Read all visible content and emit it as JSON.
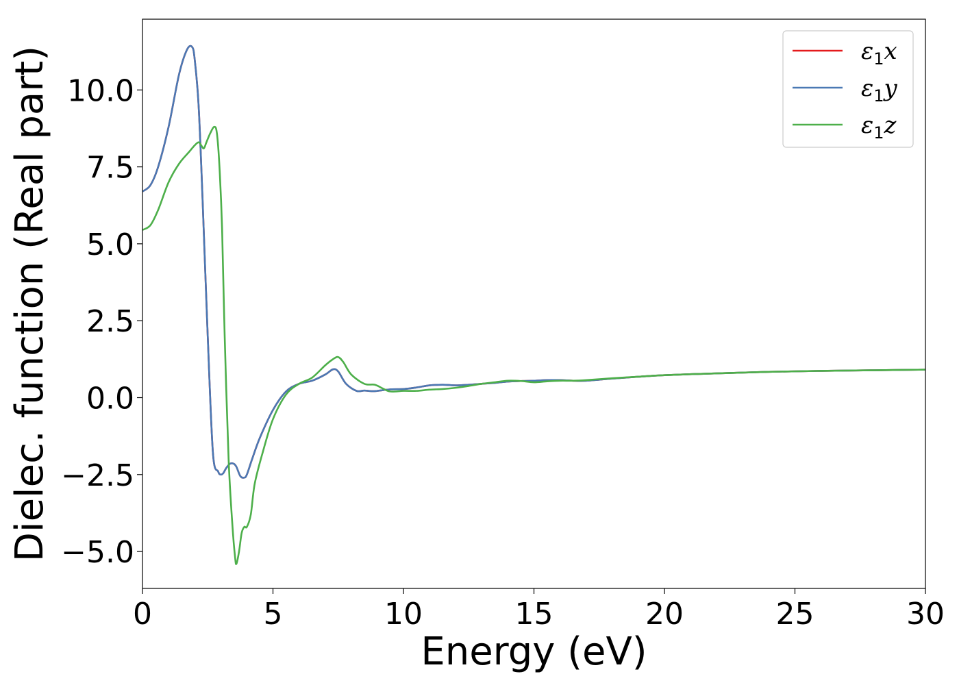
{
  "chart_data": {
    "type": "line",
    "title": "",
    "xlabel": "Energy (eV)",
    "ylabel": "Dielec. function (Real part)",
    "xlim": [
      0,
      30
    ],
    "ylim": [
      -6.2,
      12.3
    ],
    "xticks": [
      0,
      5,
      10,
      15,
      20,
      25,
      30
    ],
    "xtick_labels": [
      "0",
      "5",
      "10",
      "15",
      "20",
      "25",
      "30"
    ],
    "yticks": [
      -5.0,
      -2.5,
      0.0,
      2.5,
      5.0,
      7.5,
      10.0
    ],
    "ytick_labels": [
      "−5.0",
      "−2.5",
      "0.0",
      "2.5",
      "5.0",
      "7.5",
      "10.0"
    ],
    "grid": false,
    "legend_position": "top-right",
    "series": [
      {
        "name": "ε1x",
        "legend_base": "ε",
        "legend_sub": "1",
        "legend_tail": "x",
        "color": "#e41a1c",
        "x": [
          0,
          0.3,
          0.6,
          1.0,
          1.4,
          1.7,
          1.9,
          2.0,
          2.15,
          2.3,
          2.5,
          2.7,
          2.9,
          3.0,
          3.1,
          3.2,
          3.35,
          3.5,
          3.6,
          3.75,
          3.9,
          4.0,
          4.2,
          4.5,
          5.0,
          5.5,
          6.0,
          6.5,
          7.0,
          7.3,
          7.5,
          7.8,
          8.2,
          8.5,
          8.8,
          9.0,
          9.5,
          10.0,
          10.5,
          11.0,
          11.5,
          12.0,
          12.5,
          13.0,
          13.5,
          14.0,
          14.5,
          15.0,
          15.5,
          16.0,
          16.5,
          17.0,
          18.0,
          19.0,
          20.0,
          22.0,
          24.0,
          26.0,
          28.0,
          30.0
        ],
        "values": [
          6.7,
          6.9,
          7.5,
          8.8,
          10.5,
          11.3,
          11.4,
          11.0,
          9.5,
          6.5,
          2.0,
          -1.8,
          -2.4,
          -2.5,
          -2.45,
          -2.3,
          -2.15,
          -2.15,
          -2.25,
          -2.55,
          -2.6,
          -2.5,
          -2.0,
          -1.3,
          -0.4,
          0.2,
          0.45,
          0.55,
          0.75,
          0.92,
          0.85,
          0.45,
          0.22,
          0.23,
          0.21,
          0.22,
          0.27,
          0.28,
          0.33,
          0.4,
          0.42,
          0.4,
          0.42,
          0.45,
          0.48,
          0.52,
          0.54,
          0.55,
          0.57,
          0.57,
          0.55,
          0.55,
          0.62,
          0.68,
          0.73,
          0.79,
          0.84,
          0.87,
          0.89,
          0.91
        ]
      },
      {
        "name": "ε1y",
        "legend_base": "ε",
        "legend_sub": "1",
        "legend_tail": "y",
        "color": "#4a79b4",
        "x": [
          0,
          0.3,
          0.6,
          1.0,
          1.4,
          1.7,
          1.9,
          2.0,
          2.15,
          2.3,
          2.5,
          2.7,
          2.9,
          3.0,
          3.1,
          3.2,
          3.35,
          3.5,
          3.6,
          3.75,
          3.9,
          4.0,
          4.2,
          4.5,
          5.0,
          5.5,
          6.0,
          6.5,
          7.0,
          7.3,
          7.5,
          7.8,
          8.2,
          8.5,
          8.8,
          9.0,
          9.5,
          10.0,
          10.5,
          11.0,
          11.5,
          12.0,
          12.5,
          13.0,
          13.5,
          14.0,
          14.5,
          15.0,
          15.5,
          16.0,
          16.5,
          17.0,
          18.0,
          19.0,
          20.0,
          22.0,
          24.0,
          26.0,
          28.0,
          30.0
        ],
        "values": [
          6.7,
          6.9,
          7.5,
          8.8,
          10.5,
          11.3,
          11.4,
          11.0,
          9.5,
          6.5,
          2.0,
          -1.8,
          -2.4,
          -2.5,
          -2.45,
          -2.3,
          -2.15,
          -2.15,
          -2.25,
          -2.55,
          -2.6,
          -2.5,
          -2.0,
          -1.3,
          -0.4,
          0.2,
          0.45,
          0.55,
          0.75,
          0.92,
          0.85,
          0.45,
          0.22,
          0.23,
          0.21,
          0.22,
          0.27,
          0.28,
          0.33,
          0.4,
          0.42,
          0.4,
          0.42,
          0.45,
          0.48,
          0.52,
          0.54,
          0.55,
          0.57,
          0.57,
          0.55,
          0.55,
          0.62,
          0.68,
          0.73,
          0.79,
          0.84,
          0.87,
          0.89,
          0.91
        ]
      },
      {
        "name": "ε1z",
        "legend_base": "ε",
        "legend_sub": "1",
        "legend_tail": "z",
        "color": "#4daf4a",
        "x": [
          0,
          0.3,
          0.6,
          1.0,
          1.4,
          1.8,
          2.0,
          2.15,
          2.25,
          2.35,
          2.45,
          2.6,
          2.75,
          2.85,
          2.95,
          3.05,
          3.15,
          3.3,
          3.45,
          3.55,
          3.6,
          3.7,
          3.8,
          3.9,
          4.0,
          4.15,
          4.3,
          4.6,
          5.0,
          5.5,
          6.0,
          6.5,
          7.0,
          7.3,
          7.5,
          7.7,
          8.0,
          8.5,
          8.9,
          9.2,
          9.5,
          10.0,
          10.5,
          11.0,
          11.5,
          12.0,
          12.5,
          13.0,
          13.5,
          14.0,
          14.5,
          15.0,
          15.5,
          16.0,
          16.5,
          17.0,
          18.0,
          19.0,
          20.0,
          22.0,
          24.0,
          26.0,
          28.0,
          30.0
        ],
        "values": [
          5.45,
          5.6,
          6.1,
          7.0,
          7.6,
          8.0,
          8.2,
          8.3,
          8.2,
          8.1,
          8.3,
          8.6,
          8.8,
          8.6,
          7.5,
          5.5,
          2.0,
          -2.0,
          -4.2,
          -5.2,
          -5.4,
          -5.0,
          -4.4,
          -4.2,
          -4.2,
          -3.8,
          -2.8,
          -1.8,
          -0.7,
          0.1,
          0.45,
          0.65,
          1.05,
          1.25,
          1.32,
          1.15,
          0.75,
          0.45,
          0.42,
          0.3,
          0.2,
          0.22,
          0.22,
          0.26,
          0.28,
          0.32,
          0.38,
          0.45,
          0.5,
          0.55,
          0.54,
          0.5,
          0.53,
          0.55,
          0.55,
          0.57,
          0.63,
          0.68,
          0.73,
          0.79,
          0.84,
          0.87,
          0.89,
          0.91
        ]
      }
    ]
  }
}
